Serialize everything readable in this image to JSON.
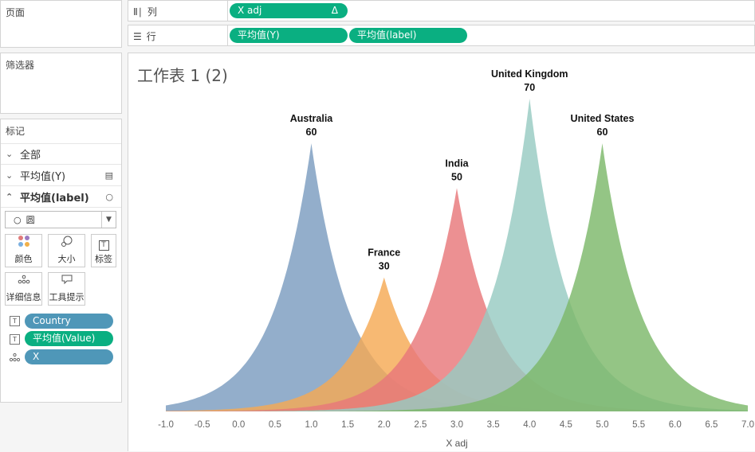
{
  "pages_panel": {
    "title": "页面"
  },
  "filters_panel": {
    "title": "筛选器"
  },
  "marks": {
    "title": "标记",
    "rows": [
      {
        "label": "全部",
        "expanded": false
      },
      {
        "label": "平均值(Y)",
        "expanded": false
      },
      {
        "label": "平均值(label)",
        "expanded": true
      }
    ],
    "mark_type": "圆",
    "buttons": {
      "color": "颜色",
      "size": "大小",
      "label": "标签",
      "detail": "详细信息",
      "tooltip": "工具提示"
    },
    "fields": [
      {
        "name": "Country",
        "type": "text"
      },
      {
        "name": "平均值(Value)",
        "type": "text"
      },
      {
        "name": "X",
        "type": "detail"
      }
    ]
  },
  "columns_shelf": {
    "label": "列",
    "pills": [
      {
        "name": "X adj",
        "delta": "Δ"
      }
    ]
  },
  "rows_shelf": {
    "label": "行",
    "pills": [
      {
        "name": "平均值(Y)"
      },
      {
        "name": "平均值(label)"
      }
    ]
  },
  "view": {
    "title": "工作表 1 (2)"
  },
  "chart_data": {
    "type": "area",
    "xlabel": "X adj",
    "xlim": [
      -1.0,
      7.0
    ],
    "x_ticks": [
      "-1.0",
      "-0.5",
      "0.0",
      "0.5",
      "1.0",
      "1.5",
      "2.0",
      "2.5",
      "3.0",
      "3.5",
      "4.0",
      "4.5",
      "5.0",
      "5.5",
      "6.0",
      "6.5",
      "7.0"
    ],
    "series": [
      {
        "name": "Australia",
        "peak_x": 1.0,
        "value": 60,
        "label_value": "60",
        "color": "#7b9cbf"
      },
      {
        "name": "France",
        "peak_x": 2.0,
        "value": 30,
        "label_value": "30",
        "color": "#f5a954"
      },
      {
        "name": "India",
        "peak_x": 3.0,
        "value": 50,
        "label_value": "50",
        "color": "#e8787a"
      },
      {
        "name": "United Kingdom",
        "peak_x": 4.0,
        "value": 70,
        "label_value": "70",
        "color": "#97cbc2"
      },
      {
        "name": "United States",
        "peak_x": 5.0,
        "value": 60,
        "label_value": "60",
        "color": "#7db86a"
      }
    ]
  }
}
